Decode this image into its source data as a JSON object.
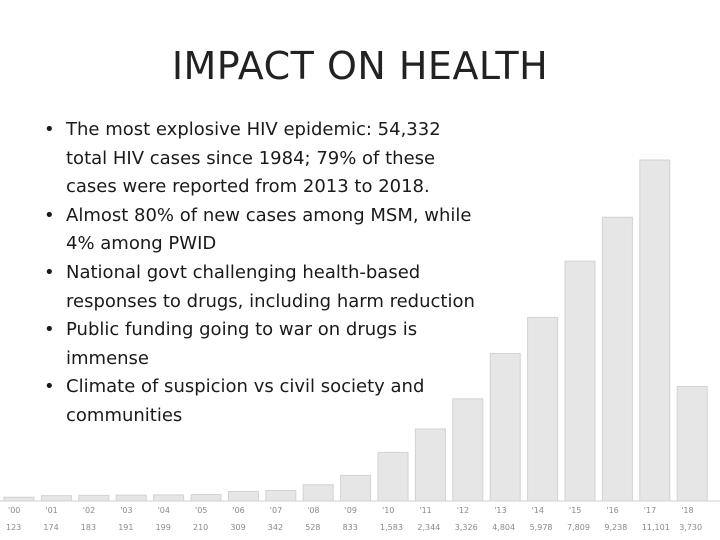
{
  "slide": {
    "title": "IMPACT ON HEALTH",
    "bullets": [
      "The most explosive HIV epidemic: 54,332 total HIV cases since 1984; 79% of these cases were  reported from 2013 to 2018.",
      "Almost 80% of new cases among MSM, while 4% among PWID",
      "National govt challenging health-based responses to drugs, including harm reduction",
      "Public funding going to war on drugs is immense",
      "Climate of suspicion vs civil society and communities"
    ],
    "bullet_glyph": "•"
  },
  "chart_data": {
    "type": "bar",
    "categories": [
      "'00",
      "'01",
      "'02",
      "'03",
      "'04",
      "'05",
      "'06",
      "'07",
      "'08",
      "'09",
      "'10",
      "'11",
      "'12",
      "'13",
      "'14",
      "'15",
      "'16",
      "'17",
      "'18"
    ],
    "values": [
      123,
      174,
      183,
      191,
      199,
      210,
      309,
      342,
      528,
      833,
      1583,
      2344,
      3326,
      4804,
      5978,
      7809,
      9238,
      11101,
      3730
    ],
    "value_labels": [
      "123",
      "174",
      "183",
      "191",
      "199",
      "210",
      "309",
      "342",
      "528",
      "833",
      "1,583",
      "2,344",
      "3,326",
      "4,804",
      "5,978",
      "7,809",
      "9,238",
      "11,101",
      "3,730"
    ],
    "ylim": [
      0,
      11101
    ],
    "colors": {
      "bar_fill": "#e6e6e6",
      "bar_stroke": "#d2d2d2",
      "label": "#8a8a8a"
    }
  }
}
